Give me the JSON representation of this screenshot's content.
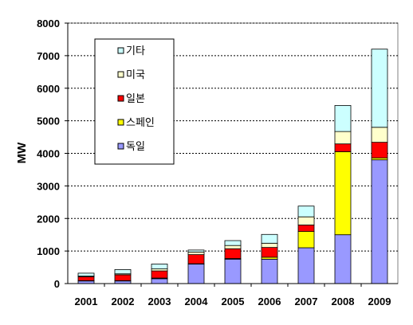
{
  "chart_data": {
    "type": "bar",
    "stacked": true,
    "categories": [
      "2001",
      "2002",
      "2003",
      "2004",
      "2005",
      "2006",
      "2007",
      "2008",
      "2009"
    ],
    "ylabel": "MW",
    "ylim": [
      0,
      8000
    ],
    "yticks": [
      0,
      1000,
      2000,
      3000,
      4000,
      5000,
      6000,
      7000,
      8000
    ],
    "grid": "horizontal-dashed",
    "legend_position": "top-left-inside",
    "series": [
      {
        "name": "독일",
        "color": "#9999ff",
        "values": [
          80,
          80,
          150,
          600,
          750,
          750,
          1100,
          1500,
          3800
        ]
      },
      {
        "name": "스페인",
        "color": "#ffff00",
        "values": [
          10,
          10,
          20,
          10,
          20,
          60,
          500,
          2550,
          60
        ]
      },
      {
        "name": "일본",
        "color": "#ff0000",
        "values": [
          120,
          180,
          220,
          280,
          300,
          300,
          200,
          240,
          480
        ]
      },
      {
        "name": "미국",
        "color": "#ffffcc",
        "values": [
          20,
          30,
          60,
          80,
          100,
          130,
          250,
          380,
          460
        ]
      },
      {
        "name": "기타",
        "color": "#ccffff",
        "values": [
          90,
          130,
          150,
          60,
          150,
          270,
          330,
          800,
          2400
        ]
      }
    ],
    "legend_order": [
      "기타",
      "미국",
      "일본",
      "스페인",
      "독일"
    ]
  }
}
